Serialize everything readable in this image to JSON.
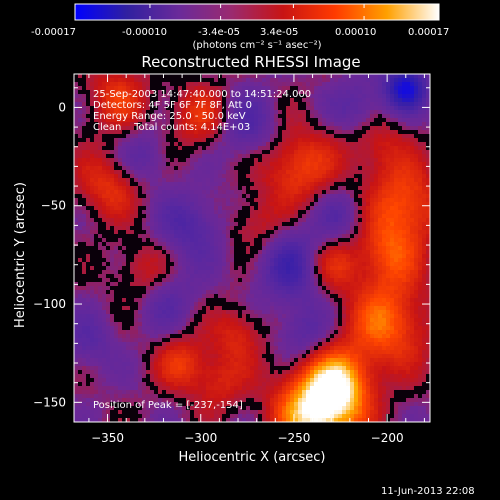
{
  "colorbar": {
    "tick_labels": [
      "-0.00017",
      "-0.00010",
      "-3.4e-05",
      "3.4e-05",
      "0.00010",
      "0.00017"
    ],
    "tick_values": [
      -0.00017,
      -0.0001,
      -3.4e-05,
      3.4e-05,
      0.0001,
      0.00017
    ],
    "range": [
      -0.00017,
      0.00017
    ],
    "units_label": "(photons cm⁻² s⁻¹ asec⁻²)",
    "colors": [
      "#0000ff",
      "#3020a0",
      "#6a2a9a",
      "#9a2a70",
      "#c81414",
      "#ff3a00",
      "#ffa000",
      "#ffffff"
    ]
  },
  "chart_data": {
    "type": "heatmap",
    "title": "Reconstructed RHESSI Image",
    "xlabel": "Heliocentric X (arcsec)",
    "ylabel": "Heliocentric Y (arcsec)",
    "xlim": [
      -368,
      -177
    ],
    "ylim": [
      -160,
      17
    ],
    "xticks": [
      -350,
      -300,
      -250,
      -200
    ],
    "xtick_labels": [
      "−350",
      "−300",
      "−250",
      "−200"
    ],
    "yticks": [
      -150,
      -100,
      -50,
      0
    ],
    "ytick_labels": [
      "−150",
      "−100",
      "−50",
      "0"
    ],
    "info_lines": [
      "25-Sep-2003 14:47:40.000 to 14:51:24.000",
      "Detectors: 4F 5F 6F 7F 8F, Att 0",
      "Energy Range: 25.0 - 50.0 keV",
      "Clean    Total counts: 4.14E+03"
    ],
    "peak_label": "Position of Peak = [-237,-154]",
    "peak": [
      -237,
      -154
    ],
    "blobs": [
      {
        "x": -237,
        "y": -154,
        "r": 16,
        "v": 1.0
      },
      {
        "x": -225,
        "y": -140,
        "r": 12,
        "v": 0.55
      },
      {
        "x": -200,
        "y": -110,
        "r": 16,
        "v": 0.6
      },
      {
        "x": -190,
        "y": -50,
        "r": 14,
        "v": 0.55
      },
      {
        "x": -200,
        "y": -75,
        "r": 12,
        "v": 0.45
      },
      {
        "x": -248,
        "y": -30,
        "r": 14,
        "v": 0.5
      },
      {
        "x": -230,
        "y": -80,
        "r": 10,
        "v": 0.4
      },
      {
        "x": -350,
        "y": -40,
        "r": 12,
        "v": 0.4
      },
      {
        "x": -345,
        "y": 5,
        "r": 12,
        "v": 0.4
      },
      {
        "x": -300,
        "y": -5,
        "r": 12,
        "v": 0.38
      },
      {
        "x": -310,
        "y": -130,
        "r": 10,
        "v": 0.4
      },
      {
        "x": -330,
        "y": -85,
        "r": 11,
        "v": 0.35
      },
      {
        "x": -280,
        "y": -115,
        "r": 10,
        "v": 0.35
      },
      {
        "x": -270,
        "y": -60,
        "r": 10,
        "v": 0.3
      },
      {
        "x": -290,
        "y": -140,
        "r": 10,
        "v": 0.32
      },
      {
        "x": -205,
        "y": -20,
        "r": 12,
        "v": 0.3
      },
      {
        "x": -305,
        "y": -60,
        "r": 12,
        "v": -0.35
      },
      {
        "x": -250,
        "y": -80,
        "r": 14,
        "v": -0.45
      },
      {
        "x": -320,
        "y": -95,
        "r": 12,
        "v": -0.3
      },
      {
        "x": -275,
        "y": -10,
        "r": 12,
        "v": -0.35
      },
      {
        "x": -215,
        "y": 0,
        "r": 10,
        "v": -0.3
      },
      {
        "x": -190,
        "y": 10,
        "r": 8,
        "v": -0.8
      },
      {
        "x": -245,
        "y": -115,
        "r": 10,
        "v": -0.3
      },
      {
        "x": -360,
        "y": -120,
        "r": 10,
        "v": -0.25
      },
      {
        "x": -330,
        "y": -25,
        "r": 10,
        "v": -0.25
      },
      {
        "x": -225,
        "y": -55,
        "r": 10,
        "v": -0.25
      }
    ]
  },
  "footer": {
    "date_stamp": "11-Jun-2013 22:08"
  }
}
